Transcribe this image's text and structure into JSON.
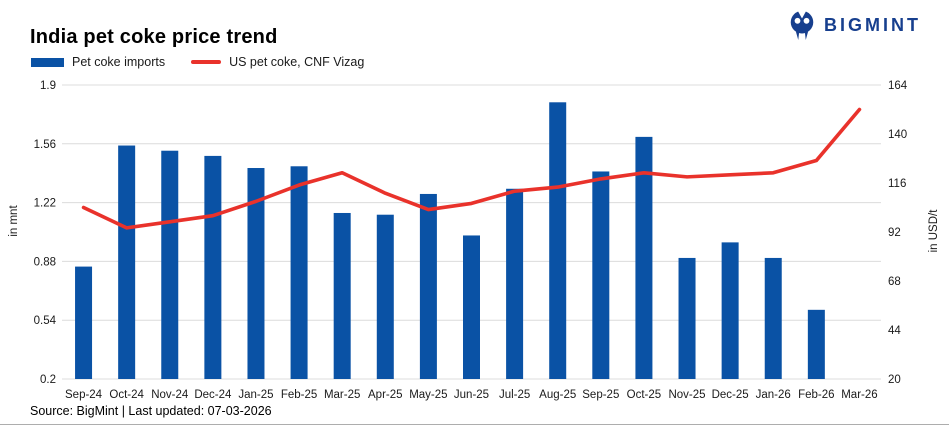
{
  "logo": {
    "text": "BIGMINT",
    "color": "#173f8e"
  },
  "header": {
    "title": "India pet coke price trend"
  },
  "legend": [
    {
      "label": "Pet coke imports",
      "type": "bar",
      "color": "#0a52a5"
    },
    {
      "label": "US pet coke, CNF Vizag",
      "type": "line",
      "color": "#e9322b"
    }
  ],
  "footer": {
    "source": "Source: BigMint | Last updated: 07-03-2026"
  },
  "chart_data": {
    "type": "bar",
    "title": "India pet coke price trend",
    "categories": [
      "Sep-24",
      "Oct-24",
      "Nov-24",
      "Dec-24",
      "Jan-25",
      "Feb-25",
      "Mar-25",
      "Apr-25",
      "May-25",
      "Jun-25",
      "Jul-25",
      "Aug-25",
      "Sep-25",
      "Oct-25",
      "Nov-25",
      "Dec-25",
      "Jan-26",
      "Feb-26",
      "Mar-26"
    ],
    "series": [
      {
        "name": "Pet coke imports",
        "type": "bar",
        "axis": "left",
        "unit": "mnt",
        "color": "#0a52a5",
        "values": [
          0.85,
          1.55,
          1.52,
          1.49,
          1.42,
          1.43,
          1.16,
          1.15,
          1.27,
          1.03,
          1.3,
          1.8,
          1.4,
          1.6,
          0.9,
          0.99,
          0.9,
          0.6,
          null
        ]
      },
      {
        "name": "US pet coke, CNF Vizag",
        "type": "line",
        "axis": "right",
        "unit": "USD/t",
        "color": "#e9322b",
        "values": [
          104,
          94,
          97,
          100,
          107,
          115,
          121,
          111,
          103,
          106,
          112,
          114,
          118,
          121,
          119,
          120,
          121,
          127,
          152
        ]
      }
    ],
    "left_axis": {
      "label": "in mnt",
      "min": 0.2,
      "max": 1.9,
      "ticks": [
        1.9,
        1.56,
        1.22,
        0.88,
        0.54,
        0.2
      ]
    },
    "right_axis": {
      "label": "in USD/t",
      "min": 20,
      "max": 164,
      "ticks": [
        164,
        140,
        116,
        92,
        68,
        44,
        20
      ]
    },
    "grid": "horizontal",
    "legend_position": "top-left"
  }
}
